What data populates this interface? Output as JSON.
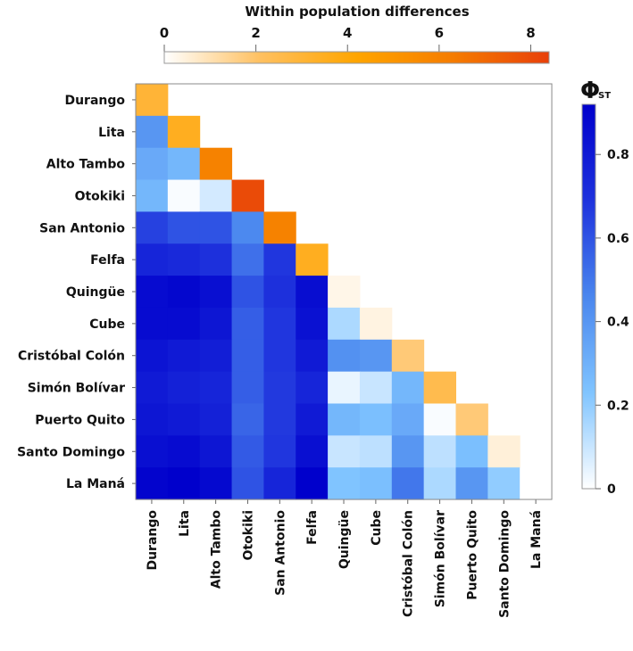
{
  "chart_data": {
    "type": "heatmap",
    "title": "Within population differences",
    "populations": [
      "Durango",
      "Lita",
      "Alto Tambo",
      "Otokiki",
      "San Antonio",
      "Felfa",
      "Quingüe",
      "Cube",
      "Cristóbal Colón",
      "Simón Bolívar",
      "Puerto Quito",
      "Santo Domingo",
      "La Maná"
    ],
    "diagonal_legend": {
      "label": "Within population differences",
      "ticks": [
        "0",
        "2",
        "4",
        "6",
        "8"
      ],
      "range": [
        0,
        8.4
      ],
      "colors": [
        "#ffffff",
        "#ffc060",
        "#ffa500",
        "#f57c00",
        "#e8400a"
      ]
    },
    "offdiag_legend": {
      "label": "Φ",
      "subscript": "ST",
      "ticks": [
        "0",
        "0.2",
        "0.4",
        "0.6",
        "0.8"
      ],
      "range": [
        0,
        0.92
      ],
      "colors": [
        "#ffffff",
        "#80c4ff",
        "#4a86ee",
        "#1e32dd",
        "#0000cc"
      ]
    },
    "diagonal": [
      3.0,
      3.5,
      6.0,
      8.0,
      6.0,
      3.5,
      0.3,
      0.4,
      1.8,
      2.5,
      1.8,
      0.5,
      0.0
    ],
    "phi_st": [
      [],
      [
        0.4
      ],
      [
        0.33,
        0.28
      ],
      [
        0.28,
        0.01,
        0.08
      ],
      [
        0.65,
        0.6,
        0.6,
        0.45
      ],
      [
        0.75,
        0.73,
        0.7,
        0.52,
        0.68
      ],
      [
        0.87,
        0.89,
        0.85,
        0.6,
        0.7,
        0.86
      ],
      [
        0.87,
        0.87,
        0.82,
        0.57,
        0.68,
        0.84,
        0.15
      ],
      [
        0.83,
        0.8,
        0.78,
        0.57,
        0.68,
        0.8,
        0.42,
        0.4
      ],
      [
        0.8,
        0.77,
        0.75,
        0.57,
        0.67,
        0.75,
        0.04,
        0.1,
        0.28
      ],
      [
        0.82,
        0.8,
        0.77,
        0.55,
        0.67,
        0.8,
        0.28,
        0.25,
        0.33,
        0.01
      ],
      [
        0.85,
        0.87,
        0.82,
        0.58,
        0.68,
        0.85,
        0.1,
        0.12,
        0.4,
        0.12,
        0.25
      ],
      [
        0.9,
        0.92,
        0.88,
        0.6,
        0.75,
        0.92,
        0.23,
        0.25,
        0.5,
        0.15,
        0.4,
        0.2
      ]
    ]
  }
}
